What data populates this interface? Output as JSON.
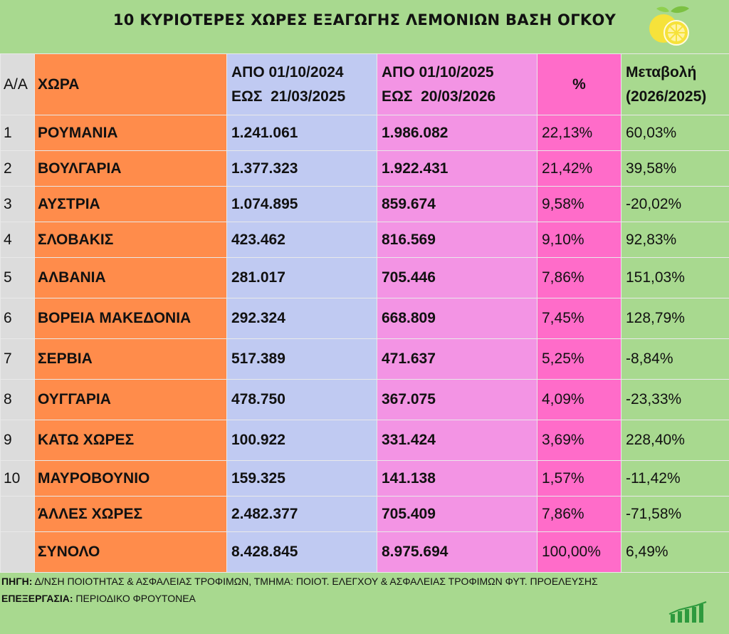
{
  "title": "10 ΚΥΡΙΟΤΕΡΕΣ ΧΩΡΕΣ ΕΞΑΓΩΓΗΣ ΛΕΜΟΝΙΩΝ ΒΑΣΗ ΟΓΚΟΥ",
  "header": {
    "idx": "Α/Α",
    "country": "ΧΩΡΑ",
    "p1_line1": "ΑΠΟ 01/10/2024",
    "p1_line2": "ΕΩΣ  21/03/2025",
    "p2_line1": "ΑΠΟ 01/10/2025",
    "p2_line2": "ΕΩΣ  20/03/2026",
    "share": "%",
    "change_line1": "Μεταβολή",
    "change_line2": "(2026/2025)"
  },
  "rows": [
    {
      "idx": "1",
      "country": "ΡΟΥΜΑΝΙΑ",
      "p1": "1.241.061",
      "p2": "1.986.082",
      "share": "22,13%",
      "change": "60,03%"
    },
    {
      "idx": "2",
      "country": "ΒΟΥΛΓΑΡΙΑ",
      "p1": "1.377.323",
      "p2": "1.922.431",
      "share": "21,42%",
      "change": "39,58%"
    },
    {
      "idx": "3",
      "country": "ΑΥΣΤΡΙΑ",
      "p1": "1.074.895",
      "p2": "859.674",
      "share": "9,58%",
      "change": "-20,02%"
    },
    {
      "idx": "4",
      "country": "ΣΛΟΒΑΚΙΣ",
      "p1": "423.462",
      "p2": "816.569",
      "share": "9,10%",
      "change": "92,83%"
    },
    {
      "idx": "5",
      "country": "ΑΛΒΑΝΙΑ",
      "p1": "281.017",
      "p2": "705.446",
      "share": "7,86%",
      "change": "151,03%"
    },
    {
      "idx": "6",
      "country": "ΒΟΡΕΙΑ ΜΑΚΕΔΟΝΙΑ",
      "p1": "292.324",
      "p2": "668.809",
      "share": "7,45%",
      "change": "128,79%"
    },
    {
      "idx": "7",
      "country": "ΣΕΡΒΙΑ",
      "p1": "517.389",
      "p2": "471.637",
      "share": "5,25%",
      "change": "-8,84%"
    },
    {
      "idx": "8",
      "country": "ΟΥΓΓΑΡΙΑ",
      "p1": "478.750",
      "p2": "367.075",
      "share": "4,09%",
      "change": "-23,33%"
    },
    {
      "idx": "9",
      "country": "ΚΑΤΩ ΧΩΡΕΣ",
      "p1": "100.922",
      "p2": "331.424",
      "share": "3,69%",
      "change": "228,40%"
    },
    {
      "idx": "10",
      "country": "ΜΑΥΡΟΒΟΥΝΙΟ",
      "p1": "159.325",
      "p2": "141.138",
      "share": "1,57%",
      "change": "-11,42%"
    },
    {
      "idx": "",
      "country": "ΆΛΛΕΣ ΧΩΡΕΣ",
      "p1": "2.482.377",
      "p2": "705.409",
      "share": "7,86%",
      "change": "-71,58%"
    },
    {
      "idx": "",
      "country": "ΣΥΝΟΛΟ",
      "p1": "8.428.845",
      "p2": "8.975.694",
      "share": "100,00%",
      "change": "6,49%"
    }
  ],
  "footer": {
    "source_label": "ΠΗΓΗ:",
    "source_text": " Δ/ΝΣΗ ΠΟΙΟΤΗΤΑΣ & ΑΣΦΑΛΕΙΑΣ ΤΡΟΦΙΜΩΝ, ΤΜΗΜΑ: ΠΟΙΟΤ. ΕΛΕΓΧΟΥ & ΑΣΦΑΛΕΙΑΣ ΤΡΟΦΙΜΩΝ ΦΥΤ. ΠΡΟΕΛΕΥΣΗΣ",
    "processing_label": "ΕΠΕΞΕΡΓΑΣΙΑ:",
    "processing_text": " ΠΕΡΙΟΔΙΚΟ ΦΡΟΥΤΟΝΕΑ"
  },
  "icons": {
    "top_right": "lemon-icon",
    "bottom_right": "bar-chart-logo-icon"
  },
  "colors": {
    "background": "#a8d98f",
    "index_col": "#dcdcdc",
    "country_col": "#ff8c4b",
    "period1_col": "#c0caf2",
    "period2_col": "#f394e4",
    "share_col": "#ff6cc9",
    "change_col": "#a8d98f"
  },
  "chart_data": {
    "type": "table",
    "title": "10 ΚΥΡΙΟΤΕΡΕΣ ΧΩΡΕΣ ΕΞΑΓΩΓΗΣ ΛΕΜΟΝΙΩΝ ΒΑΣΗ ΟΓΚΟΥ",
    "columns": [
      "Α/Α",
      "ΧΩΡΑ",
      "ΑΠΟ 01/10/2024 ΕΩΣ 21/03/2025",
      "ΑΠΟ 01/10/2025 ΕΩΣ 20/03/2026",
      "%",
      "Μεταβολή (2026/2025)"
    ],
    "rows": [
      [
        1,
        "ΡΟΥΜΑΝΙΑ",
        1241061,
        1986082,
        22.13,
        60.03
      ],
      [
        2,
        "ΒΟΥΛΓΑΡΙΑ",
        1377323,
        1922431,
        21.42,
        39.58
      ],
      [
        3,
        "ΑΥΣΤΡΙΑ",
        1074895,
        859674,
        9.58,
        -20.02
      ],
      [
        4,
        "ΣΛΟΒΑΚΙΣ",
        423462,
        816569,
        9.1,
        92.83
      ],
      [
        5,
        "ΑΛΒΑΝΙΑ",
        281017,
        705446,
        7.86,
        151.03
      ],
      [
        6,
        "ΒΟΡΕΙΑ ΜΑΚΕΔΟΝΙΑ",
        292324,
        668809,
        7.45,
        128.79
      ],
      [
        7,
        "ΣΕΡΒΙΑ",
        517389,
        471637,
        5.25,
        -8.84
      ],
      [
        8,
        "ΟΥΓΓΑΡΙΑ",
        478750,
        367075,
        4.09,
        -23.33
      ],
      [
        9,
        "ΚΑΤΩ ΧΩΡΕΣ",
        100922,
        331424,
        3.69,
        228.4
      ],
      [
        10,
        "ΜΑΥΡΟΒΟΥΝΙΟ",
        159325,
        141138,
        1.57,
        -11.42
      ],
      [
        null,
        "ΆΛΛΕΣ ΧΩΡΕΣ",
        2482377,
        705409,
        7.86,
        -71.58
      ],
      [
        null,
        "ΣΥΝΟΛΟ",
        8428845,
        8975694,
        100.0,
        6.49
      ]
    ]
  }
}
